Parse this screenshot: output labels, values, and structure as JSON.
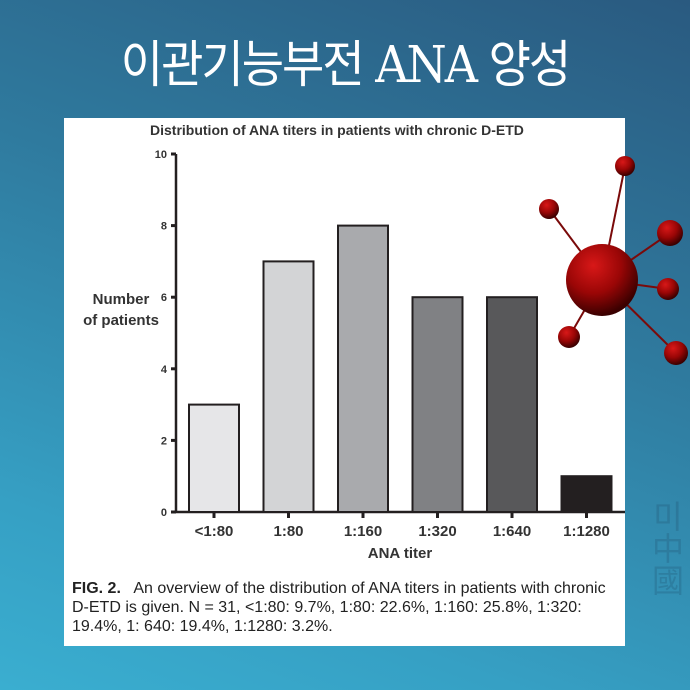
{
  "header": {
    "title": "이관기능부전 ANA 양성"
  },
  "figure": {
    "caption_label": "FIG. 2.",
    "caption_text": "An overview of the distribution of ANA titers in patients with chronic D-ETD is given. N = 31, <1:80: 9.7%, 1:80: 22.6%, 1:160: 25.8%, 1:320: 19.4%, 1: 640: 19.4%, 1:1280: 3.2%."
  },
  "chart_data": {
    "type": "bar",
    "title": "Distribution of ANA titers in patients with chronic D-ETD",
    "xlabel": "ANA titer",
    "ylabel": "Number of patients",
    "categories": [
      "<1:80",
      "1:80",
      "1:160",
      "1:320",
      "1:640",
      "1:1280"
    ],
    "values": [
      3,
      7,
      8,
      6,
      6,
      1
    ],
    "colors": [
      "#e6e6e8",
      "#d3d4d6",
      "#a9aaad",
      "#808184",
      "#58585a",
      "#231f20"
    ],
    "ylim": [
      0,
      10
    ],
    "yticks": [
      0,
      2,
      4,
      6,
      8,
      10
    ],
    "grid": false,
    "legend": null,
    "n": 31,
    "percentages": [
      "9.7%",
      "22.6%",
      "25.8%",
      "19.4%",
      "19.4%",
      "3.2%"
    ]
  },
  "decor": {
    "molecule_icon": "virus-molecule-icon",
    "watermark_icon": "hanja-calligraphy-watermark"
  }
}
